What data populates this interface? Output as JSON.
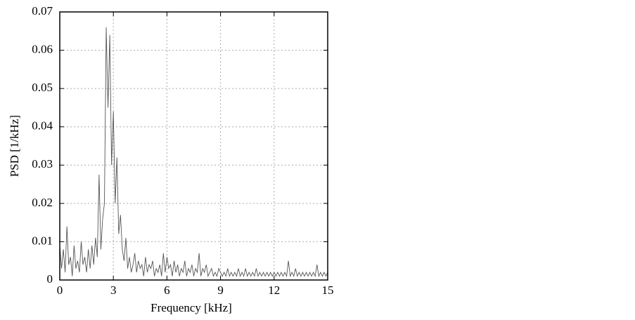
{
  "chart_data": {
    "type": "line",
    "xlabel": "Frequency [kHz]",
    "ylabel": "PSD [1/kHz]",
    "color": "#555555",
    "grid": true,
    "xlim": [
      0,
      15
    ],
    "xticks": [
      0,
      3,
      6,
      9,
      12,
      15
    ],
    "ylim": [
      0,
      0.07
    ],
    "yticks": [
      0,
      0.01,
      0.02,
      0.03,
      0.04,
      0.05,
      0.06,
      0.07
    ],
    "x": [
      0,
      0.1,
      0.2,
      0.3,
      0.4,
      0.5,
      0.6,
      0.7,
      0.8,
      0.9,
      1,
      1.1,
      1.2,
      1.3,
      1.4,
      1.5,
      1.6,
      1.7,
      1.8,
      1.9,
      2,
      2.1,
      2.2,
      2.3,
      2.4,
      2.5,
      2.6,
      2.7,
      2.8,
      2.9,
      3,
      3.1,
      3.2,
      3.3,
      3.4,
      3.5,
      3.6,
      3.7,
      3.8,
      3.9,
      4,
      4.1,
      4.2,
      4.3,
      4.4,
      4.5,
      4.6,
      4.7,
      4.8,
      4.9,
      5,
      5.1,
      5.2,
      5.3,
      5.4,
      5.5,
      5.6,
      5.7,
      5.8,
      5.9,
      6,
      6.1,
      6.2,
      6.3,
      6.4,
      6.5,
      6.6,
      6.7,
      6.8,
      6.9,
      7,
      7.1,
      7.2,
      7.3,
      7.4,
      7.5,
      7.6,
      7.7,
      7.8,
      7.9,
      8,
      8.1,
      8.2,
      8.3,
      8.4,
      8.5,
      8.6,
      8.7,
      8.8,
      8.9,
      9,
      9.1,
      9.2,
      9.3,
      9.4,
      9.5,
      9.6,
      9.7,
      9.8,
      9.9,
      10,
      10.1,
      10.2,
      10.3,
      10.4,
      10.5,
      10.6,
      10.7,
      10.8,
      10.9,
      11,
      11.1,
      11.2,
      11.3,
      11.4,
      11.5,
      11.6,
      11.7,
      11.8,
      11.9,
      12,
      12.1,
      12.2,
      12.3,
      12.4,
      12.5,
      12.6,
      12.7,
      12.8,
      12.9,
      13,
      13.1,
      13.2,
      13.3,
      13.4,
      13.5,
      13.6,
      13.7,
      13.8,
      13.9,
      14,
      14.1,
      14.2,
      14.3,
      14.4,
      14.5,
      14.6,
      14.7,
      14.8,
      14.9,
      15
    ],
    "values": [
      0.009,
      0.003,
      0.008,
      0.002,
      0.014,
      0.004,
      0.006,
      0.001,
      0.009,
      0.003,
      0.005,
      0.002,
      0.01,
      0.004,
      0.006,
      0.002,
      0.008,
      0.003,
      0.009,
      0.004,
      0.011,
      0.006,
      0.0275,
      0.008,
      0.016,
      0.02,
      0.066,
      0.045,
      0.064,
      0.03,
      0.044,
      0.02,
      0.032,
      0.012,
      0.017,
      0.008,
      0.005,
      0.011,
      0.003,
      0.006,
      0.002,
      0.004,
      0.007,
      0.002,
      0.005,
      0.003,
      0.004,
      0.001,
      0.006,
      0.002,
      0.004,
      0.003,
      0.005,
      0.001,
      0.003,
      0.002,
      0.004,
      0.001,
      0.007,
      0.002,
      0.006,
      0.003,
      0.004,
      0.001,
      0.005,
      0.002,
      0.004,
      0.001,
      0.003,
      0.002,
      0.005,
      0.001,
      0.003,
      0.002,
      0.004,
      0.001,
      0.003,
      0.002,
      0.007,
      0.001,
      0.003,
      0.002,
      0.004,
      0.001,
      0.002,
      0.003,
      0.001,
      0.002,
      0.001,
      0.003,
      0.002,
      0.001,
      0.002,
      0.001,
      0.003,
      0.001,
      0.002,
      0.001,
      0.002,
      0.001,
      0.003,
      0.001,
      0.002,
      0.001,
      0.003,
      0.001,
      0.002,
      0.001,
      0.002,
      0.001,
      0.003,
      0.001,
      0.002,
      0.001,
      0.002,
      0.001,
      0.002,
      0.001,
      0.002,
      0.001,
      0.002,
      0.001,
      0.002,
      0.001,
      0.002,
      0.001,
      0.002,
      0.001,
      0.005,
      0.001,
      0.002,
      0.001,
      0.003,
      0.001,
      0.002,
      0.001,
      0.002,
      0.001,
      0.002,
      0.001,
      0.002,
      0.001,
      0.002,
      0.001,
      0.004,
      0.001,
      0.002,
      0.001,
      0.002,
      0.001,
      0.002
    ]
  }
}
